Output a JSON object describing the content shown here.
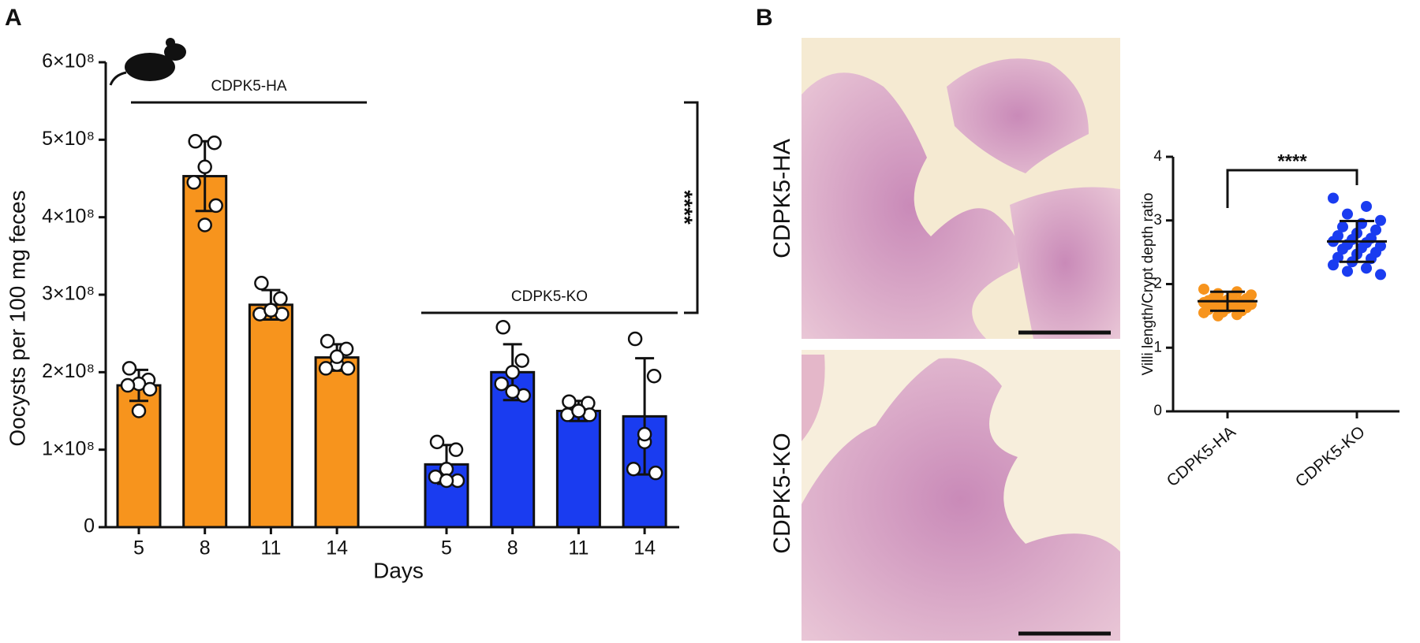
{
  "panel_labels": [
    "A",
    "B"
  ],
  "micrographs": [
    {
      "label": "CDPK5-HA"
    },
    {
      "label": "CDPK5-KO"
    }
  ],
  "chart_data": [
    {
      "type": "bar",
      "ylabel": "Oocysts per 100 mg feces",
      "xlabel": "Days",
      "annotation": "****",
      "categories": [
        "5",
        "8",
        "11",
        "14"
      ],
      "ylim": [
        0,
        600000000.0
      ],
      "yticks": [
        0,
        {
          "value": 100000000.0,
          "label": "1×10⁸"
        },
        {
          "value": 200000000.0,
          "label": "2×10⁸"
        },
        {
          "value": 300000000.0,
          "label": "3×10⁸"
        },
        {
          "value": 400000000.0,
          "label": "4×10⁸"
        },
        {
          "value": 500000000.0,
          "label": "5×10⁸"
        },
        {
          "value": 600000000.0,
          "label": "6×10⁸"
        }
      ],
      "series": [
        {
          "name": "CDPK5-HA",
          "color": "#f7941d",
          "values": [
            183000000.0,
            453000000.0,
            287000000.0,
            219000000.0
          ],
          "errors": [
            20000000.0,
            45000000.0,
            19000000.0,
            17000000.0
          ],
          "points": [
            [
              205000000.0,
              190000000.0,
              185000000.0,
              183000000.0,
              178000000.0,
              150000000.0
            ],
            [
              498000000.0,
              496000000.0,
              465000000.0,
              445000000.0,
              415000000.0,
              390000000.0
            ],
            [
              315000000.0,
              295000000.0,
              280000000.0,
              275000000.0,
              275000000.0,
              280000000.0
            ],
            [
              240000000.0,
              230000000.0,
              210000000.0,
              205000000.0,
              205000000.0,
              220000000.0
            ]
          ]
        },
        {
          "name": "CDPK5-KO",
          "color": "#1a3cf0",
          "values": [
            81000000.0,
            200000000.0,
            150000000.0,
            143000000.0
          ],
          "errors": [
            25000000.0,
            36000000.0,
            13000000.0,
            75000000.0
          ],
          "points": [
            [
              110000000.0,
              100000000.0,
              75000000.0,
              65000000.0,
              60000000.0,
              60000000.0
            ],
            [
              258000000.0,
              215000000.0,
              200000000.0,
              185000000.0,
              170000000.0,
              175000000.0
            ],
            [
              162000000.0,
              160000000.0,
              150000000.0,
              145000000.0,
              145000000.0,
              150000000.0
            ],
            [
              243000000.0,
              195000000.0,
              110000000.0,
              75000000.0,
              70000000.0,
              120000000.0
            ]
          ]
        }
      ]
    },
    {
      "type": "dotplot",
      "ylabel": "Villi length/Crypt depth ratio",
      "annotation": "****",
      "categories": [
        "CDPK5-HA",
        "CDPK5-KO"
      ],
      "colors": [
        "#f7941d",
        "#1a3cf0"
      ],
      "ylim": [
        0,
        4
      ],
      "yticks": [
        0,
        1,
        2,
        3,
        4
      ],
      "values": [
        1.73,
        2.67
      ],
      "errors": [
        0.15,
        0.32
      ],
      "points": [
        [
          1.92,
          1.88,
          1.85,
          1.83,
          1.8,
          1.78,
          1.77,
          1.75,
          1.74,
          1.73,
          1.72,
          1.71,
          1.7,
          1.69,
          1.68,
          1.66,
          1.65,
          1.63,
          1.62,
          1.6,
          1.58,
          1.56,
          1.55,
          1.52,
          1.5
        ],
        [
          3.35,
          3.22,
          3.1,
          3.0,
          2.95,
          2.9,
          2.85,
          2.8,
          2.76,
          2.72,
          2.7,
          2.67,
          2.65,
          2.62,
          2.6,
          2.57,
          2.55,
          2.5,
          2.47,
          2.42,
          2.4,
          2.35,
          2.3,
          2.25,
          2.2,
          2.15
        ]
      ]
    }
  ]
}
